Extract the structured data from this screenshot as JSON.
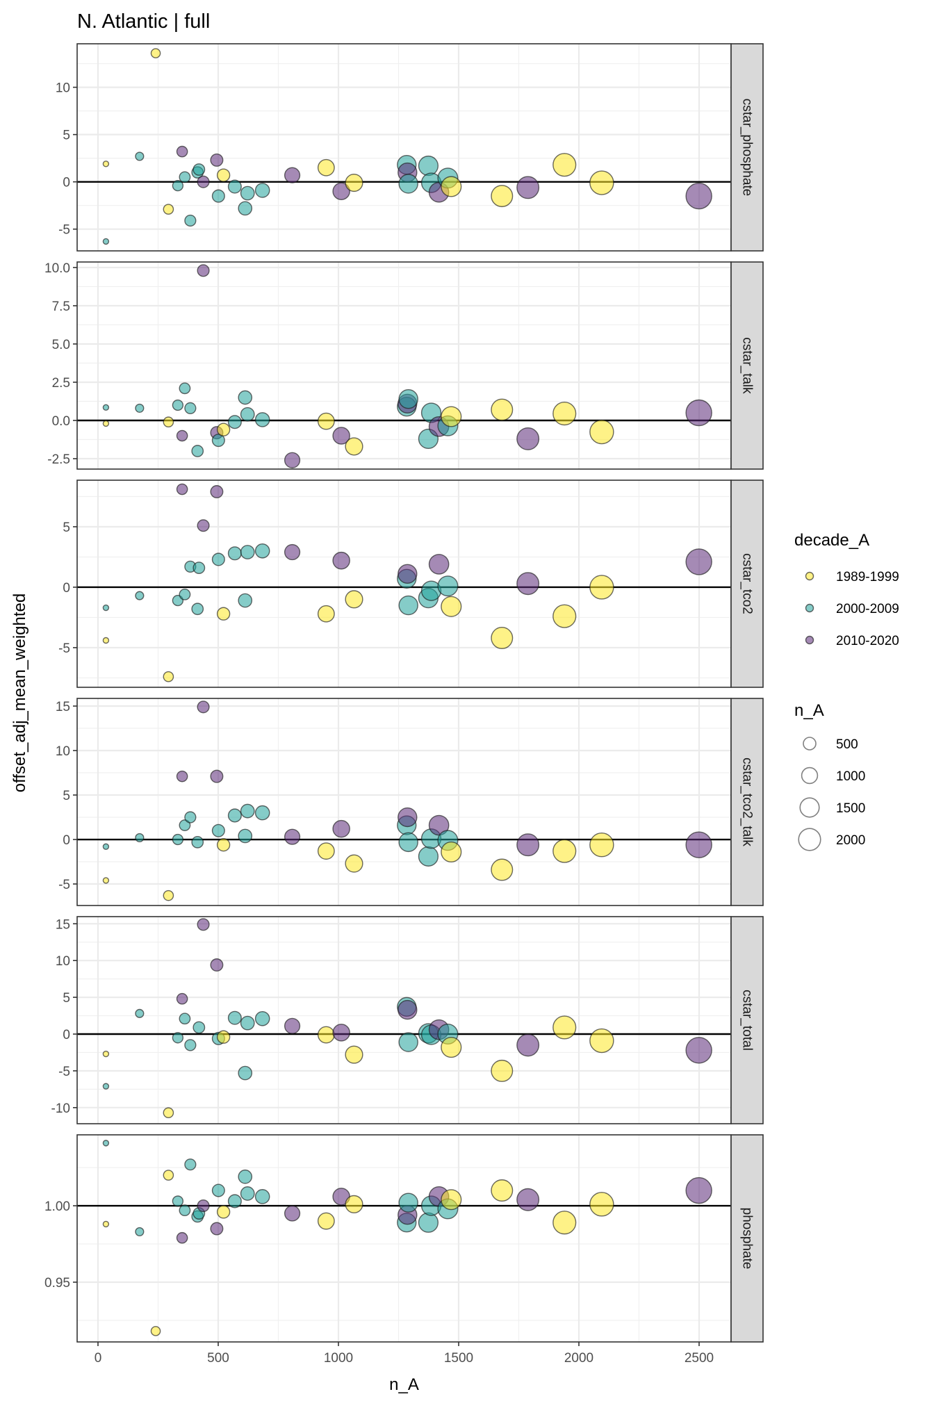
{
  "chart_data": {
    "type": "scatter",
    "title": "N. Atlantic | full",
    "xlabel": "n_A",
    "ylabel": "offset_adj_mean_weighted",
    "xlim": [
      -110,
      2620
    ],
    "xticks": [
      0,
      500,
      1000,
      1500,
      2000,
      2500
    ],
    "xtick_labels": [
      "0",
      "500",
      "1000",
      "1500",
      "2000",
      "2500"
    ],
    "grid": true,
    "reference_line": 0,
    "colors": {
      "1989-1999": "#fde725",
      "2000-2009": "#21a39a",
      "2010-2020": "#5b2a78"
    },
    "legend": {
      "position": "right",
      "color": {
        "title": "decade_A",
        "entries": [
          "1989-1999",
          "2000-2009",
          "2010-2020"
        ]
      },
      "size": {
        "title": "n_A",
        "entries": [
          500,
          1000,
          1500,
          2000
        ],
        "labels": [
          "500",
          "1000",
          "1500",
          "2000"
        ]
      }
    },
    "points": [
      {
        "id": "p01",
        "n": 33,
        "decade": "1989-1999"
      },
      {
        "id": "p02",
        "n": 33,
        "decade": "2000-2009"
      },
      {
        "id": "p03",
        "n": 173,
        "decade": "2000-2009"
      },
      {
        "id": "p04",
        "n": 240,
        "decade": "1989-1999"
      },
      {
        "id": "p05",
        "n": 293,
        "decade": "1989-1999"
      },
      {
        "id": "p06",
        "n": 332,
        "decade": "2000-2009"
      },
      {
        "id": "p07",
        "n": 350,
        "decade": "2010-2020"
      },
      {
        "id": "p08",
        "n": 361,
        "decade": "2000-2009"
      },
      {
        "id": "p09",
        "n": 384,
        "decade": "2000-2009"
      },
      {
        "id": "p10",
        "n": 414,
        "decade": "2000-2009"
      },
      {
        "id": "p11",
        "n": 420,
        "decade": "2000-2009"
      },
      {
        "id": "p12",
        "n": 438,
        "decade": "2010-2020"
      },
      {
        "id": "p13",
        "n": 494,
        "decade": "2010-2020"
      },
      {
        "id": "p14",
        "n": 501,
        "decade": "2000-2009"
      },
      {
        "id": "p15",
        "n": 522,
        "decade": "1989-1999"
      },
      {
        "id": "p16",
        "n": 569,
        "decade": "2000-2009"
      },
      {
        "id": "p17",
        "n": 612,
        "decade": "2000-2009"
      },
      {
        "id": "p18",
        "n": 622,
        "decade": "2000-2009"
      },
      {
        "id": "p19",
        "n": 684,
        "decade": "2000-2009"
      },
      {
        "id": "p20",
        "n": 808,
        "decade": "2010-2020"
      },
      {
        "id": "p21",
        "n": 949,
        "decade": "1989-1999"
      },
      {
        "id": "p22",
        "n": 1012,
        "decade": "2010-2020"
      },
      {
        "id": "p23",
        "n": 1065,
        "decade": "1989-1999"
      },
      {
        "id": "p24",
        "n": 1284,
        "decade": "2000-2009"
      },
      {
        "id": "p25",
        "n": 1287,
        "decade": "2010-2020"
      },
      {
        "id": "p26",
        "n": 1291,
        "decade": "2000-2009"
      },
      {
        "id": "p27",
        "n": 1374,
        "decade": "2000-2009"
      },
      {
        "id": "p28",
        "n": 1386,
        "decade": "2000-2009"
      },
      {
        "id": "p29",
        "n": 1418,
        "decade": "2010-2020"
      },
      {
        "id": "p30",
        "n": 1455,
        "decade": "2000-2009"
      },
      {
        "id": "p31",
        "n": 1469,
        "decade": "1989-1999"
      },
      {
        "id": "p32",
        "n": 1680,
        "decade": "1989-1999"
      },
      {
        "id": "p33",
        "n": 1788,
        "decade": "2010-2020"
      },
      {
        "id": "p34",
        "n": 1940,
        "decade": "1989-1999"
      },
      {
        "id": "p35",
        "n": 2095,
        "decade": "1989-1999"
      },
      {
        "id": "p36",
        "n": 2499,
        "decade": "2010-2020"
      }
    ],
    "panels": [
      {
        "strip": "cstar_phosphate",
        "ylim": [
          -7.3,
          14.6
        ],
        "yticks": [
          -5,
          0,
          5,
          10
        ],
        "ytick_labels": [
          "-5",
          "0",
          "5",
          "10"
        ],
        "yminor": [
          -2.5,
          2.5,
          7.5,
          12.5
        ],
        "values": {
          "p01": 1.9,
          "p02": -6.3,
          "p03": 2.7,
          "p04": 13.6,
          "p05": -2.9,
          "p06": -0.4,
          "p07": 3.2,
          "p08": 0.5,
          "p09": -4.1,
          "p10": 1.0,
          "p11": 1.3,
          "p12": 0.0,
          "p13": 2.3,
          "p14": -1.5,
          "p15": 0.7,
          "p16": -0.5,
          "p17": -2.8,
          "p18": -1.2,
          "p19": -0.9,
          "p20": 0.7,
          "p21": 1.5,
          "p22": -1.0,
          "p23": -0.1,
          "p24": 1.8,
          "p25": 1.0,
          "p26": -0.2,
          "p27": 1.7,
          "p28": -0.1,
          "p29": -1.1,
          "p30": 0.4,
          "p31": -0.5,
          "p32": -1.5,
          "p33": -0.6,
          "p34": 1.8,
          "p35": -0.1,
          "p36": -1.5
        }
      },
      {
        "strip": "cstar_talk",
        "ylim": [
          -3.18,
          10.36
        ],
        "yticks": [
          -2.5,
          0.0,
          2.5,
          5.0,
          7.5,
          10.0
        ],
        "ytick_labels": [
          "-2.5",
          "0.0",
          "2.5",
          "5.0",
          "7.5",
          "10.0"
        ],
        "yminor": [
          -1.25,
          1.25,
          3.75,
          6.25,
          8.75
        ],
        "values": {
          "p01": -0.2,
          "p02": 0.85,
          "p03": 0.8,
          "p05": -0.1,
          "p06": 1.0,
          "p07": -1.0,
          "p08": 2.1,
          "p09": 0.8,
          "p10": -2.0,
          "p12": 9.8,
          "p13": -0.8,
          "p14": -1.3,
          "p15": -0.6,
          "p16": -0.1,
          "p17": 1.5,
          "p18": 0.4,
          "p19": 0.05,
          "p20": -2.6,
          "p21": -0.05,
          "p22": -1.0,
          "p23": -1.7,
          "p24": 0.9,
          "p25": 1.1,
          "p26": 1.4,
          "p27": -1.2,
          "p28": 0.5,
          "p29": -0.4,
          "p30": -0.35,
          "p31": 0.25,
          "p32": 0.7,
          "p33": -1.2,
          "p34": 0.45,
          "p35": -0.75,
          "p36": 0.5
        }
      },
      {
        "strip": "cstar_tco2",
        "ylim": [
          -8.28,
          8.85
        ],
        "yticks": [
          -5,
          0,
          5
        ],
        "ytick_labels": [
          "-5",
          "0",
          "5"
        ],
        "yminor": [
          -7.5,
          -2.5,
          2.5,
          7.5
        ],
        "values": {
          "p01": -4.4,
          "p02": -1.7,
          "p03": -0.7,
          "p05": -7.4,
          "p06": -1.1,
          "p07": 8.1,
          "p08": -0.6,
          "p09": 1.7,
          "p10": -1.8,
          "p11": 1.6,
          "p12": 5.1,
          "p13": 7.9,
          "p14": 2.3,
          "p15": -2.2,
          "p16": 2.8,
          "p17": -1.1,
          "p18": 2.9,
          "p19": 3.0,
          "p20": 2.9,
          "p21": -2.2,
          "p22": 2.2,
          "p23": -1.0,
          "p24": 0.7,
          "p25": 1.1,
          "p26": -1.5,
          "p27": -0.9,
          "p28": -0.3,
          "p29": 1.9,
          "p30": 0.1,
          "p31": -1.6,
          "p32": -4.2,
          "p33": 0.3,
          "p34": -2.4,
          "p35": 0.0,
          "p36": 2.1
        }
      },
      {
        "strip": "cstar_tco2_talk",
        "ylim": [
          -7.42,
          15.86
        ],
        "yticks": [
          -5,
          0,
          5,
          10,
          15
        ],
        "ytick_labels": [
          "-5",
          "0",
          "5",
          "10",
          "15"
        ],
        "yminor": [
          -2.5,
          2.5,
          7.5,
          12.5
        ],
        "values": {
          "p01": -4.6,
          "p02": -0.8,
          "p03": 0.2,
          "p05": -6.3,
          "p06": 0.0,
          "p07": 7.1,
          "p08": 1.6,
          "p09": 2.5,
          "p10": -0.3,
          "p12": 14.9,
          "p13": 7.1,
          "p14": 1.0,
          "p15": -0.6,
          "p16": 2.7,
          "p17": 0.4,
          "p18": 3.2,
          "p19": 3.0,
          "p20": 0.3,
          "p21": -1.3,
          "p22": 1.2,
          "p23": -2.7,
          "p24": 1.6,
          "p25": 2.5,
          "p26": -0.3,
          "p27": -1.9,
          "p28": 0.1,
          "p29": 1.6,
          "p30": -0.1,
          "p31": -1.4,
          "p32": -3.4,
          "p33": -0.6,
          "p34": -1.3,
          "p35": -0.6,
          "p36": -0.6
        }
      },
      {
        "strip": "cstar_total",
        "ylim": [
          -12.19,
          15.97
        ],
        "yticks": [
          -10,
          -5,
          0,
          5,
          10,
          15
        ],
        "ytick_labels": [
          "-10",
          "-5",
          "0",
          "5",
          "10",
          "15"
        ],
        "yminor": [
          -7.5,
          -2.5,
          2.5,
          7.5,
          12.5
        ],
        "values": {
          "p01": -2.7,
          "p02": -7.1,
          "p03": 2.8,
          "p05": -10.7,
          "p06": -0.5,
          "p07": 4.8,
          "p08": 2.1,
          "p09": -1.5,
          "p11": 0.9,
          "p12": 14.9,
          "p13": 9.4,
          "p14": -0.6,
          "p15": -0.4,
          "p16": 2.2,
          "p17": -5.3,
          "p18": 1.5,
          "p19": 2.1,
          "p20": 1.1,
          "p21": -0.1,
          "p22": 0.2,
          "p23": -2.8,
          "p24": 3.7,
          "p25": 3.3,
          "p26": -1.1,
          "p27": 0.1,
          "p28": -0.1,
          "p29": 0.6,
          "p30": 0.0,
          "p31": -1.8,
          "p32": -5.0,
          "p33": -1.5,
          "p34": 0.9,
          "p35": -0.9,
          "p36": -2.2
        }
      },
      {
        "strip": "phosphate",
        "ylim": [
          0.9109,
          1.0464
        ],
        "yticks": [
          0.95,
          1.0
        ],
        "ytick_labels": [
          "0.95",
          "1.00"
        ],
        "yminor": [
          0.925,
          0.975,
          1.025
        ],
        "reference_line": 1.0,
        "values": {
          "p01": 0.988,
          "p02": 1.041,
          "p03": 0.983,
          "p04": 0.918,
          "p05": 1.02,
          "p06": 1.003,
          "p07": 0.979,
          "p08": 0.997,
          "p09": 1.027,
          "p10": 0.993,
          "p11": 0.995,
          "p12": 1.0,
          "p13": 0.985,
          "p14": 1.01,
          "p15": 0.996,
          "p16": 1.003,
          "p17": 1.019,
          "p18": 1.008,
          "p19": 1.006,
          "p20": 0.995,
          "p21": 0.99,
          "p22": 1.006,
          "p23": 1.001,
          "p24": 0.989,
          "p25": 0.994,
          "p26": 1.002,
          "p27": 0.989,
          "p28": 1.0,
          "p29": 1.006,
          "p30": 0.998,
          "p31": 1.004,
          "p32": 1.01,
          "p33": 1.004,
          "p34": 0.989,
          "p35": 1.001,
          "p36": 1.01
        }
      }
    ]
  }
}
